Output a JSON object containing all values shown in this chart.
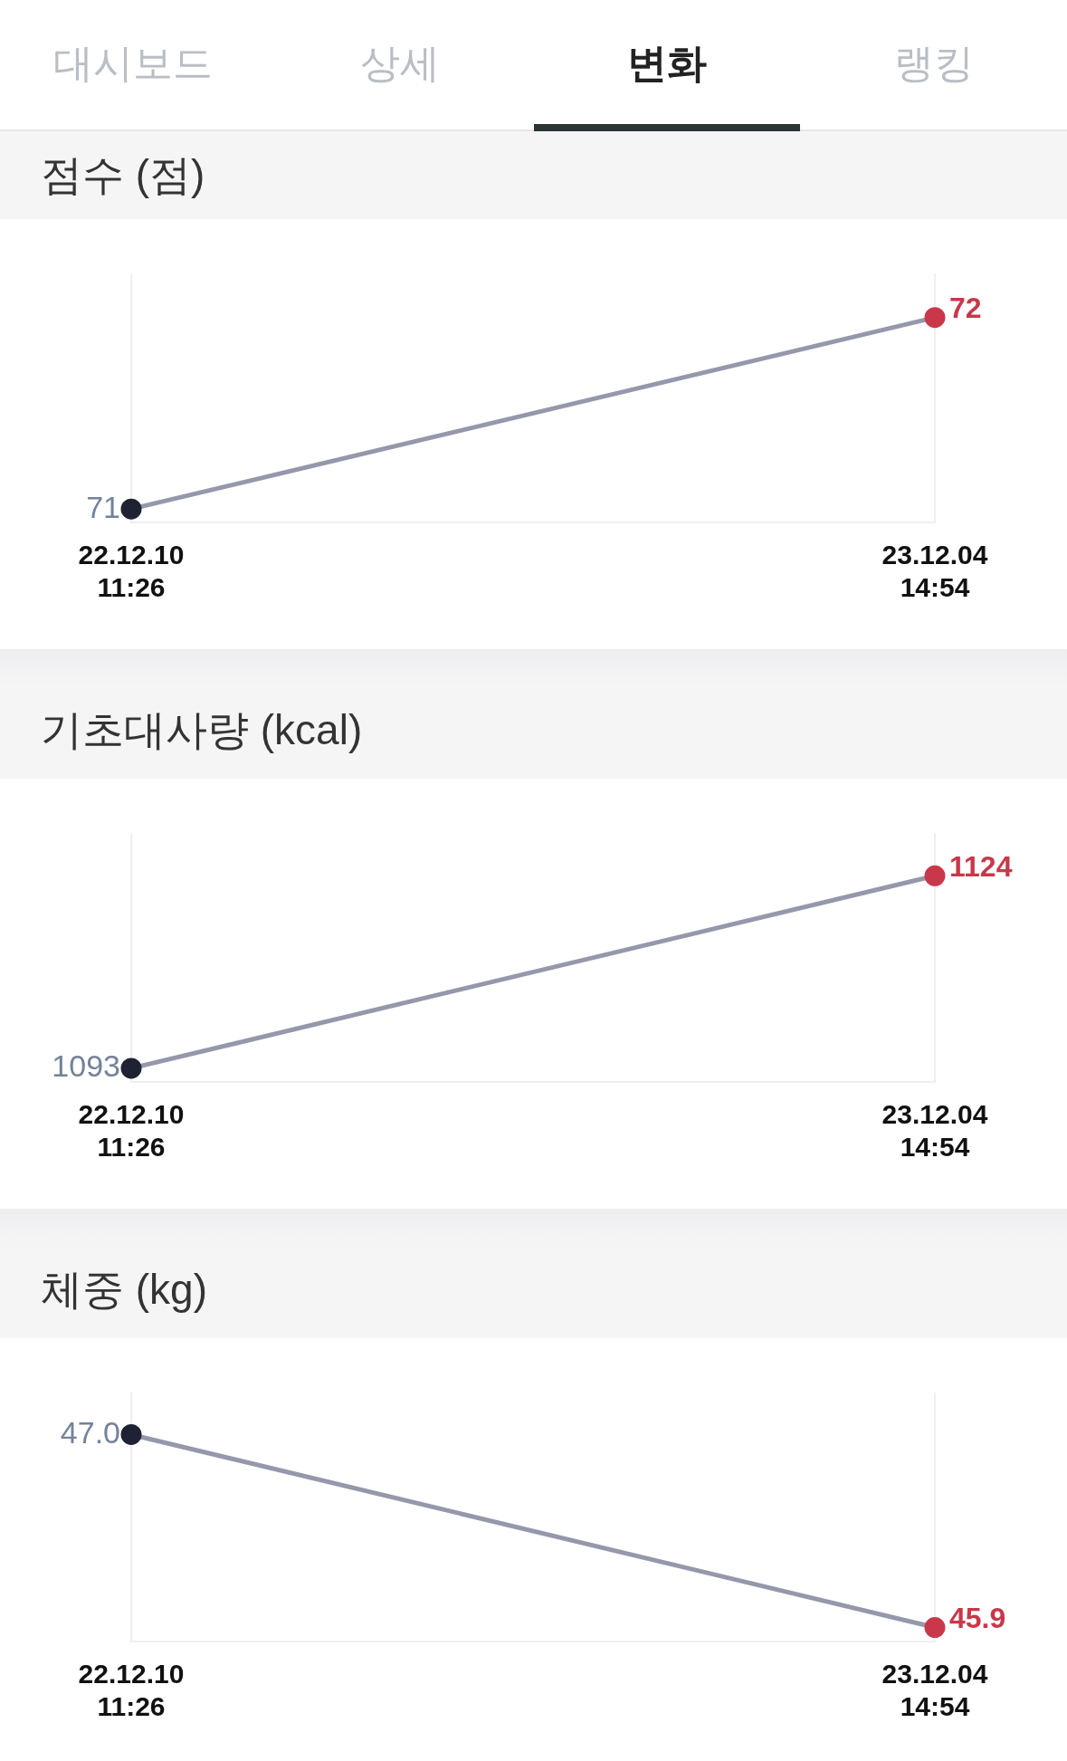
{
  "chart_data": [
    {
      "type": "line",
      "title": "점수 (점)",
      "annotations": [
        "대시보드",
        "상세",
        "변화",
        "랭킹"
      ],
      "categories": [
        "22.12.10\n11:26",
        "23.12.04\n14:54"
      ],
      "series": [
        {
          "color": "#9598ab",
          "colors": [
            "#1f2233",
            "#c8384a"
          ],
          "values": [
            71,
            72
          ],
          "value_labels": [
            "71",
            "72"
          ]
        }
      ],
      "ylim": [
        70.93,
        72.23
      ],
      "grid": "x",
      "legend": false,
      "marker": "circle"
    },
    {
      "type": "line",
      "title": "기초대사량 (kcal)",
      "categories": [
        "22.12.10\n11:26",
        "23.12.04\n14:54"
      ],
      "series": [
        {
          "color": "#9598ab",
          "colors": [
            "#1f2233",
            "#c8384a"
          ],
          "values": [
            1093,
            1124
          ],
          "value_labels": [
            "1093",
            "1124"
          ]
        }
      ],
      "ylim": [
        1090.8,
        1130.9
      ],
      "grid": "x",
      "legend": false,
      "marker": "circle"
    },
    {
      "type": "line",
      "title": "체중 (kg)",
      "categories": [
        "22.12.10\n11:26",
        "23.12.04\n14:54"
      ],
      "series": [
        {
          "color": "#9598ab",
          "colors": [
            "#1f2233",
            "#c8384a"
          ],
          "values": [
            47.0,
            45.9
          ],
          "value_labels": [
            "47.0",
            "45.9"
          ]
        }
      ],
      "ylim": [
        45.82,
        47.24
      ],
      "grid": "x",
      "legend": false,
      "marker": "circle"
    }
  ]
}
